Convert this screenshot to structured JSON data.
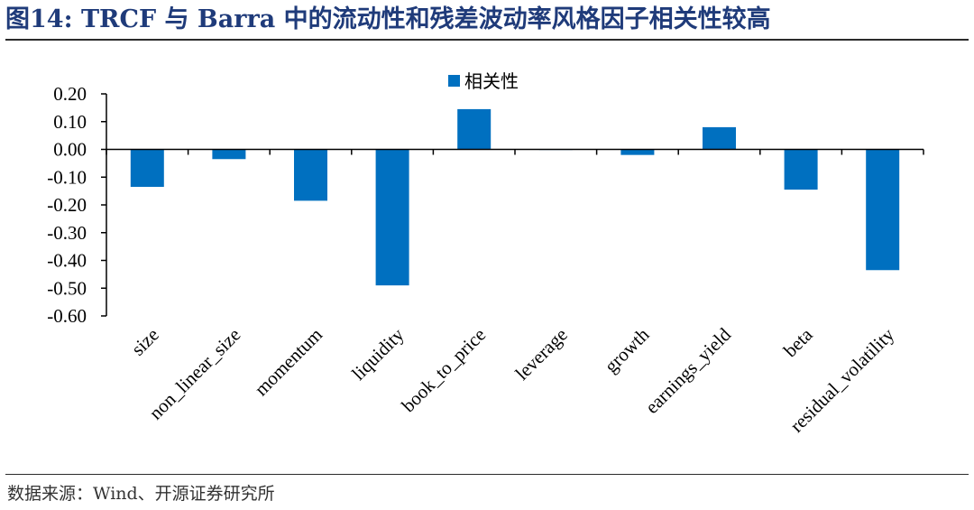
{
  "header": {
    "title": "图14:  TRCF 与 Barra 中的流动性和残差波动率风格因子相关性较高"
  },
  "footer": {
    "source": "数据来源：Wind、开源证券研究所"
  },
  "colors": {
    "bar": "#0070c0",
    "title": "#1f3b7a"
  },
  "chart_data": {
    "type": "bar",
    "categories": [
      "size",
      "non_linear_size",
      "momentum",
      "liquidity",
      "book_to_price",
      "leverage",
      "growth",
      "earnings_yield",
      "beta",
      "residual_volatility"
    ],
    "series": [
      {
        "name": "相关性",
        "values": [
          -0.135,
          -0.035,
          -0.185,
          -0.49,
          0.145,
          -0.002,
          -0.02,
          0.08,
          -0.145,
          -0.435
        ]
      }
    ],
    "ylim": [
      -0.6,
      0.2
    ],
    "yticks": [
      0.2,
      0.1,
      0.0,
      -0.1,
      -0.2,
      -0.3,
      -0.4,
      -0.5,
      -0.6
    ],
    "ytick_labels": [
      "0.20",
      "0.10",
      "0.00",
      "-0.10",
      "-0.20",
      "-0.30",
      "-0.40",
      "-0.50",
      "-0.60"
    ],
    "xlabel": "",
    "ylabel": "",
    "legend_position": "top-center",
    "grid": false
  }
}
